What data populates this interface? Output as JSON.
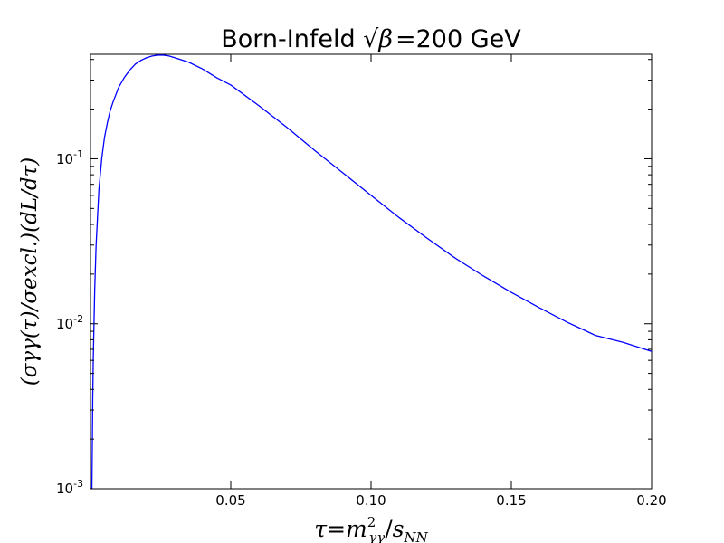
{
  "chart_data": {
    "type": "line",
    "title": {
      "prefix": "Born-Infeld ",
      "symbol": "β",
      "equals": "=",
      "value": "200",
      "suffix": " GeV"
    },
    "xlabel": {
      "tau": "τ",
      "equals": "=",
      "m": "m",
      "sup": "2",
      "sub_gg": "γγ",
      "slash": "/",
      "s": "s",
      "sub_nn": "NN"
    },
    "ylabel": {
      "text": "(σγγ(τ)/σexcl.)(dL/dτ)"
    },
    "x_ticks": [
      "0.05",
      "0.10",
      "0.15",
      "0.20"
    ],
    "y_ticks": [
      {
        "base": "10",
        "exp": "-1"
      },
      {
        "base": "10",
        "exp": "-2"
      },
      {
        "base": "10",
        "exp": "-3"
      }
    ],
    "xlim": [
      0.0,
      0.2
    ],
    "ylim": [
      0.001,
      0.43
    ],
    "y_scale": "log",
    "grid": false,
    "line_color": "#0000ff",
    "series": [
      {
        "x": [
          0.0005,
          0.0008,
          0.001,
          0.0015,
          0.002,
          0.003,
          0.004,
          0.005,
          0.006,
          0.007,
          0.008,
          0.01,
          0.012,
          0.014,
          0.016,
          0.018,
          0.02,
          0.022,
          0.024,
          0.026,
          0.028,
          0.03,
          0.035,
          0.04,
          0.045,
          0.05,
          0.06,
          0.07,
          0.08,
          0.09,
          0.1,
          0.11,
          0.12,
          0.13,
          0.14,
          0.15,
          0.16,
          0.17,
          0.18,
          0.19,
          0.2
        ],
        "y": [
          0.001,
          0.0035,
          0.0062,
          0.016,
          0.03,
          0.065,
          0.1,
          0.135,
          0.165,
          0.195,
          0.22,
          0.27,
          0.31,
          0.345,
          0.375,
          0.395,
          0.41,
          0.42,
          0.425,
          0.425,
          0.42,
          0.41,
          0.385,
          0.35,
          0.31,
          0.28,
          0.21,
          0.155,
          0.112,
          0.082,
          0.06,
          0.044,
          0.033,
          0.025,
          0.0195,
          0.0155,
          0.0125,
          0.0102,
          0.0085,
          0.0077,
          0.0068
        ]
      }
    ]
  }
}
